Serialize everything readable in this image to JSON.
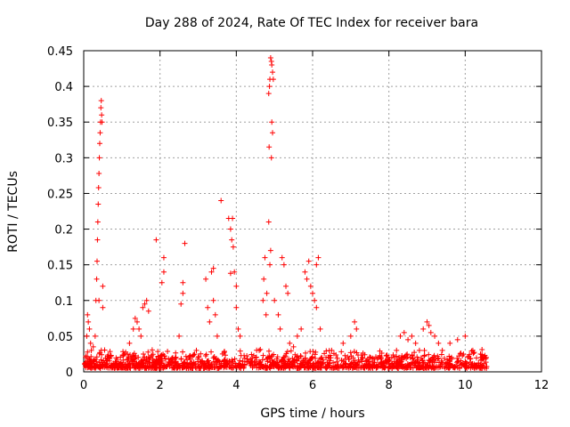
{
  "chart_data": {
    "type": "scatter",
    "title": "Day 288 of 2024, Rate Of TEC Index for receiver bara",
    "xlabel": "GPS time / hours",
    "ylabel": "ROTI / TECUs",
    "xlim": [
      0,
      12
    ],
    "ylim": [
      0,
      0.45
    ],
    "xticks": [
      "0",
      "2",
      "4",
      "6",
      "8",
      "10",
      "12"
    ],
    "yticks": [
      "0",
      "0.05",
      "0.1",
      "0.15",
      "0.2",
      "0.25",
      "0.3",
      "0.35",
      "0.4",
      "0.45"
    ],
    "grid": true,
    "marker": "plus",
    "color": "#ff0000",
    "series": [
      {
        "points": [
          [
            0.05,
            0.02
          ],
          [
            0.08,
            0.05
          ],
          [
            0.1,
            0.08
          ],
          [
            0.12,
            0.07
          ],
          [
            0.15,
            0.06
          ],
          [
            0.18,
            0.04
          ],
          [
            0.2,
            0.03
          ],
          [
            0.25,
            0.035
          ],
          [
            0.3,
            0.05
          ],
          [
            0.32,
            0.1
          ],
          [
            0.34,
            0.13
          ],
          [
            0.35,
            0.155
          ],
          [
            0.36,
            0.185
          ],
          [
            0.37,
            0.21
          ],
          [
            0.38,
            0.235
          ],
          [
            0.39,
            0.258
          ],
          [
            0.4,
            0.278
          ],
          [
            0.41,
            0.3
          ],
          [
            0.42,
            0.32
          ],
          [
            0.43,
            0.335
          ],
          [
            0.44,
            0.35
          ],
          [
            0.45,
            0.37
          ],
          [
            0.46,
            0.38
          ],
          [
            0.47,
            0.36
          ],
          [
            0.48,
            0.35
          ],
          [
            0.5,
            0.12
          ],
          [
            0.5,
            0.09
          ],
          [
            0.4,
            0.1
          ],
          [
            1.2,
            0.04
          ],
          [
            1.3,
            0.06
          ],
          [
            1.35,
            0.075
          ],
          [
            1.4,
            0.07
          ],
          [
            1.45,
            0.06
          ],
          [
            1.5,
            0.05
          ],
          [
            1.55,
            0.09
          ],
          [
            1.6,
            0.095
          ],
          [
            1.65,
            0.1
          ],
          [
            1.7,
            0.085
          ],
          [
            1.9,
            0.185
          ],
          [
            2.1,
            0.16
          ],
          [
            2.1,
            0.14
          ],
          [
            2.05,
            0.125
          ],
          [
            2.6,
            0.125
          ],
          [
            2.6,
            0.11
          ],
          [
            2.65,
            0.18
          ],
          [
            2.55,
            0.095
          ],
          [
            2.5,
            0.05
          ],
          [
            3.2,
            0.13
          ],
          [
            3.25,
            0.09
          ],
          [
            3.3,
            0.07
          ],
          [
            3.35,
            0.14
          ],
          [
            3.4,
            0.145
          ],
          [
            3.4,
            0.1
          ],
          [
            3.45,
            0.08
          ],
          [
            3.5,
            0.05
          ],
          [
            3.6,
            0.24
          ],
          [
            3.8,
            0.215
          ],
          [
            3.85,
            0.2
          ],
          [
            3.9,
            0.215
          ],
          [
            3.88,
            0.185
          ],
          [
            3.92,
            0.175
          ],
          [
            3.95,
            0.14
          ],
          [
            3.85,
            0.138
          ],
          [
            4.0,
            0.12
          ],
          [
            4.0,
            0.09
          ],
          [
            4.05,
            0.06
          ],
          [
            4.1,
            0.05
          ],
          [
            4.6,
            0.03
          ],
          [
            4.7,
            0.1
          ],
          [
            4.72,
            0.13
          ],
          [
            4.75,
            0.16
          ],
          [
            4.78,
            0.08
          ],
          [
            4.8,
            0.11
          ],
          [
            4.85,
            0.39
          ],
          [
            4.87,
            0.4
          ],
          [
            4.88,
            0.41
          ],
          [
            4.9,
            0.44
          ],
          [
            4.92,
            0.435
          ],
          [
            4.93,
            0.43
          ],
          [
            4.95,
            0.42
          ],
          [
            4.97,
            0.41
          ],
          [
            4.86,
            0.315
          ],
          [
            4.93,
            0.35
          ],
          [
            4.95,
            0.335
          ],
          [
            4.92,
            0.3
          ],
          [
            4.85,
            0.21
          ],
          [
            4.9,
            0.17
          ],
          [
            4.88,
            0.15
          ],
          [
            5.0,
            0.1
          ],
          [
            5.1,
            0.08
          ],
          [
            5.15,
            0.06
          ],
          [
            5.2,
            0.16
          ],
          [
            5.25,
            0.15
          ],
          [
            5.3,
            0.12
          ],
          [
            5.35,
            0.11
          ],
          [
            5.4,
            0.04
          ],
          [
            5.5,
            0.035
          ],
          [
            5.6,
            0.05
          ],
          [
            5.7,
            0.06
          ],
          [
            5.8,
            0.14
          ],
          [
            5.85,
            0.13
          ],
          [
            5.9,
            0.155
          ],
          [
            5.95,
            0.12
          ],
          [
            6.0,
            0.11
          ],
          [
            6.05,
            0.1
          ],
          [
            6.1,
            0.15
          ],
          [
            6.15,
            0.16
          ],
          [
            6.1,
            0.09
          ],
          [
            6.2,
            0.06
          ],
          [
            6.5,
            0.03
          ],
          [
            6.8,
            0.04
          ],
          [
            7.0,
            0.05
          ],
          [
            7.1,
            0.07
          ],
          [
            7.15,
            0.06
          ],
          [
            7.3,
            0.02
          ],
          [
            7.8,
            0.02
          ],
          [
            8.2,
            0.03
          ],
          [
            8.3,
            0.05
          ],
          [
            8.4,
            0.055
          ],
          [
            8.5,
            0.045
          ],
          [
            8.6,
            0.05
          ],
          [
            8.7,
            0.04
          ],
          [
            8.8,
            0.03
          ],
          [
            8.9,
            0.06
          ],
          [
            9.0,
            0.07
          ],
          [
            9.05,
            0.065
          ],
          [
            9.1,
            0.055
          ],
          [
            9.2,
            0.05
          ],
          [
            9.3,
            0.04
          ],
          [
            9.4,
            0.03
          ],
          [
            9.6,
            0.04
          ],
          [
            9.8,
            0.045
          ],
          [
            10.0,
            0.05
          ],
          [
            10.2,
            0.03
          ],
          [
            10.4,
            0.025
          ],
          [
            10.5,
            0.02
          ]
        ]
      }
    ]
  }
}
